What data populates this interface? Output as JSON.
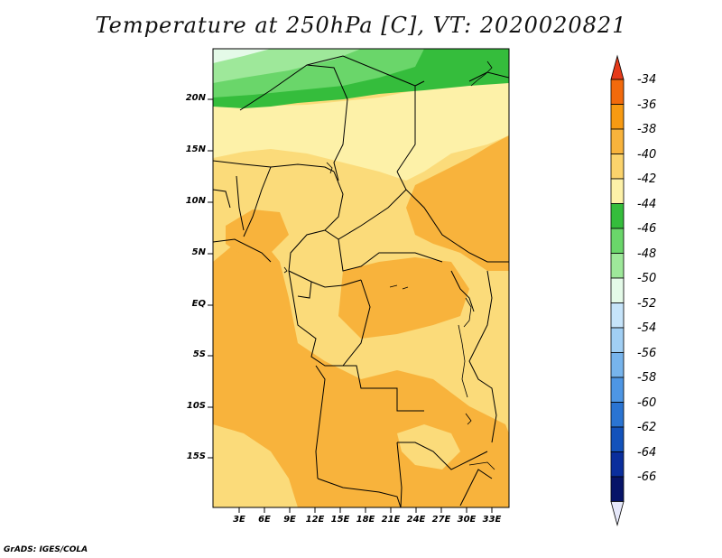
{
  "title": "Temperature at 250hPa [C], VT: 2020020821",
  "credit": "GrADS: IGES/COLA",
  "map": {
    "lat_labels": [
      "20N",
      "15N",
      "10N",
      "5N",
      "EQ",
      "5S",
      "10S",
      "15S"
    ],
    "lon_labels": [
      "3E",
      "6E",
      "9E",
      "12E",
      "15E",
      "18E",
      "21E",
      "24E",
      "27E",
      "30E",
      "33E"
    ]
  },
  "colorbar": {
    "labels": [
      "-34",
      "-36",
      "-38",
      "-40",
      "-42",
      "-44",
      "-46",
      "-48",
      "-50",
      "-52",
      "-54",
      "-56",
      "-58",
      "-60",
      "-62",
      "-64",
      "-66"
    ],
    "colors": [
      "#e53a1a",
      "#f26a0c",
      "#f79a12",
      "#f8b33c",
      "#fbd36c",
      "#fdf1a8",
      "#35bd3c",
      "#6ad66a",
      "#9ee89a",
      "#e4fae8",
      "#c6e4fa",
      "#a1cff4",
      "#77b4ec",
      "#4e96e4",
      "#2a74d2",
      "#1352bb",
      "#0a2e9c",
      "#071468",
      "#e6e8fa"
    ]
  }
}
